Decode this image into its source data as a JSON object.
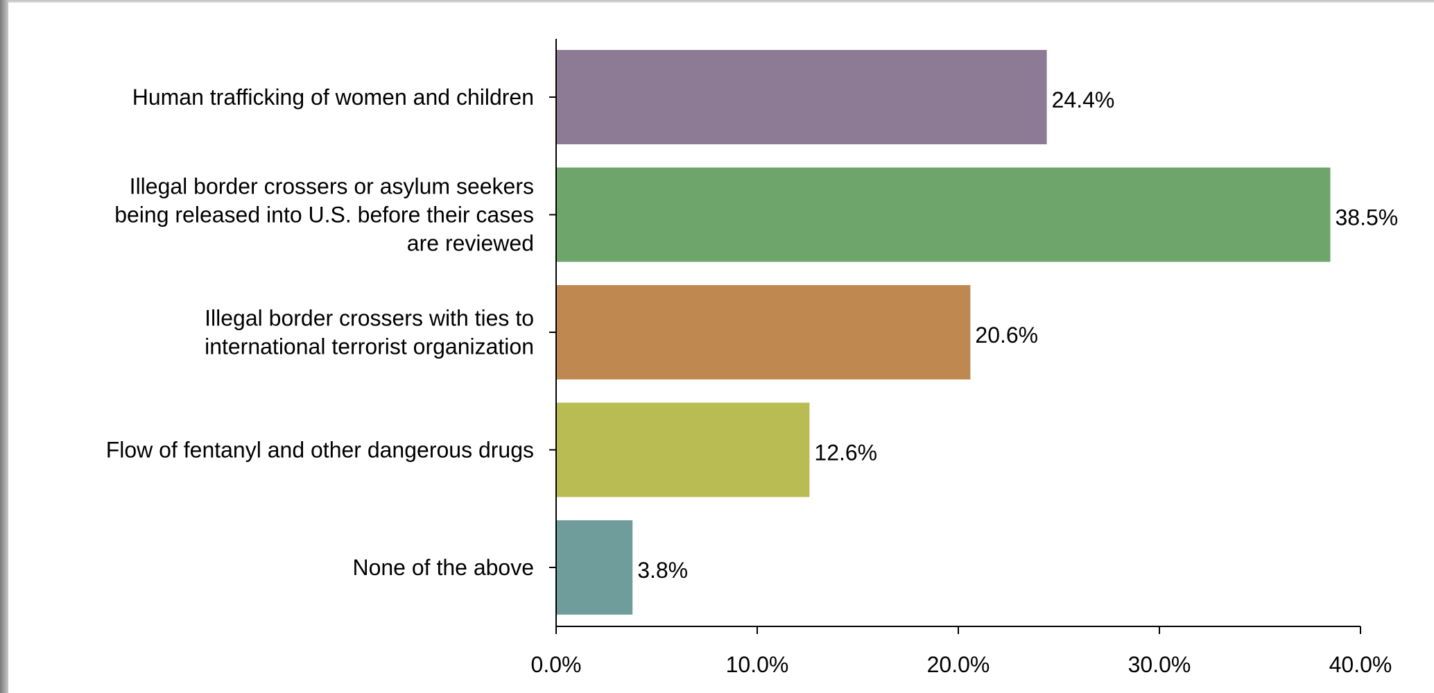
{
  "chart_data": {
    "type": "bar",
    "orientation": "horizontal",
    "categories": [
      [
        "Human trafficking of women and children"
      ],
      [
        "Illegal border crossers or asylum seekers",
        "being released into U.S. before their cases",
        "are reviewed"
      ],
      [
        "Illegal border crossers with ties to",
        "international terrorist organization"
      ],
      [
        "Flow of fentanyl and other dangerous drugs"
      ],
      [
        "None of the above"
      ]
    ],
    "values": [
      24.4,
      38.5,
      20.6,
      12.6,
      3.8
    ],
    "value_labels": [
      "24.4%",
      "38.5%",
      "20.6%",
      "12.6%",
      "3.8%"
    ],
    "colors": [
      "#8d7a94",
      "#6ea56a",
      "#bf8850",
      "#b9bc52",
      "#6f9d9b"
    ],
    "xlim": [
      0,
      40
    ],
    "xticks": [
      0,
      10,
      20,
      30,
      40
    ],
    "xtick_labels": [
      "0.0%",
      "10.0%",
      "20.0%",
      "30.0%",
      "40.0%"
    ],
    "grid": false,
    "legend": "none"
  }
}
